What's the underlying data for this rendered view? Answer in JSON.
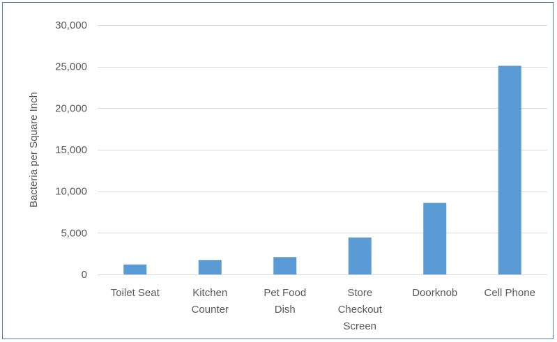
{
  "chart_data": {
    "type": "bar",
    "title": "",
    "xlabel": "",
    "ylabel": "Bacteria per Square Inch",
    "categories": [
      [
        "Toilet Seat"
      ],
      [
        "Kitchen",
        "Counter"
      ],
      [
        "Pet Food",
        "Dish"
      ],
      [
        "Store",
        "Checkout",
        "Screen"
      ],
      [
        "Doorknob"
      ],
      [
        "Cell Phone"
      ]
    ],
    "values": [
      1200,
      1740,
      2080,
      4440,
      8620,
      25100
    ],
    "ylim": [
      0,
      30000
    ],
    "yticks": [
      0,
      5000,
      10000,
      15000,
      20000,
      25000,
      30000
    ],
    "ytick_labels": [
      "0",
      "5,000",
      "10,000",
      "15,000",
      "20,000",
      "25,000",
      "30,000"
    ],
    "grid": true,
    "legend": "none",
    "colors": {
      "bar": "#5b9bd5",
      "grid": "#d9d9d9",
      "text": "#595959",
      "border": "#4a7ebb"
    }
  }
}
